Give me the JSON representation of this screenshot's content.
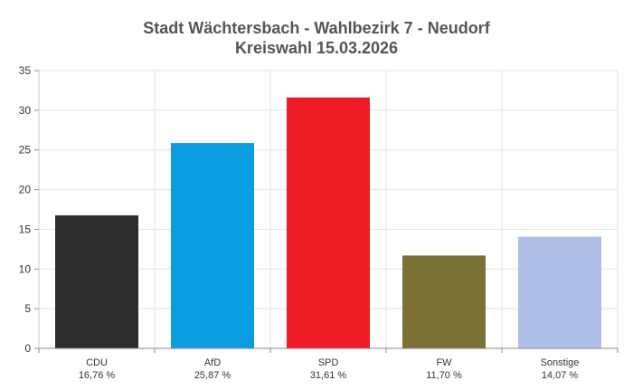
{
  "chart_data": {
    "type": "bar",
    "title": "Stadt Wächtersbach - Wahlbezirk 7 - Neudorf",
    "subtitle": "Kreiswahl 15.03.2026",
    "xlabel": "",
    "ylabel": "",
    "ylim": [
      0,
      35
    ],
    "yticks": [
      0,
      5,
      10,
      15,
      20,
      25,
      30,
      35
    ],
    "grid": true,
    "categories": [
      "CDU",
      "AfD",
      "SPD",
      "FW",
      "Sonstige"
    ],
    "value_labels": [
      "16,76 %",
      "25,87 %",
      "31,61 %",
      "11,70 %",
      "14,07 %"
    ],
    "values": [
      16.76,
      25.87,
      31.61,
      11.7,
      14.07
    ],
    "colors": [
      "#2f2c2c",
      "#0b9de0",
      "#ee1c25",
      "#7b7035",
      "#adbfe6"
    ]
  }
}
